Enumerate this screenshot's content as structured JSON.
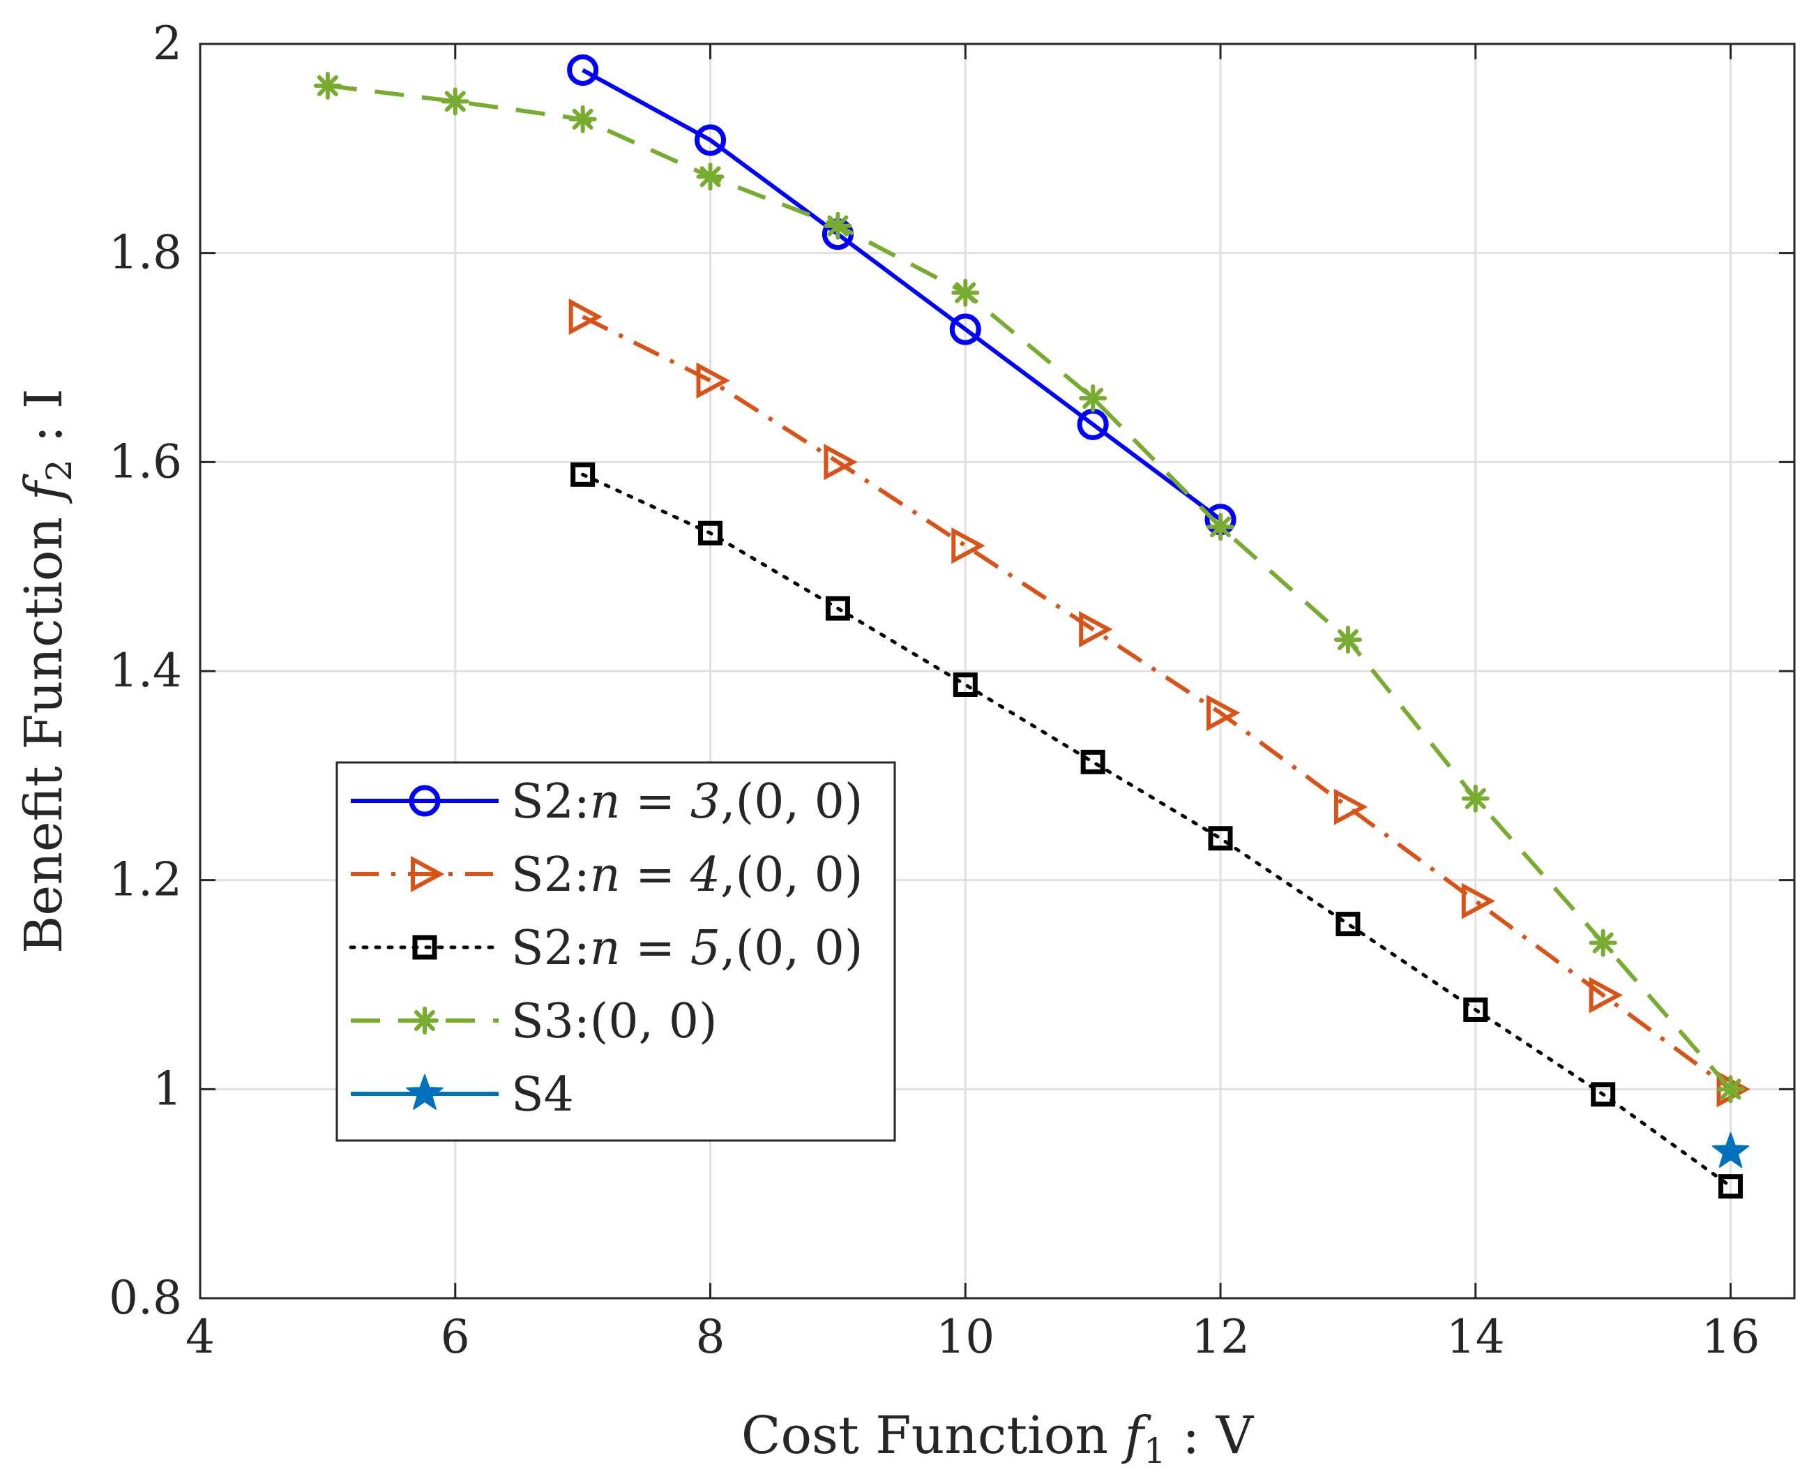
{
  "chart_data": {
    "type": "line",
    "xlabel": "Cost Function f1 : V",
    "xlabel_parts": {
      "prefix": "Cost Function ",
      "var": "f",
      "sub": "1",
      "suffix": " : V"
    },
    "ylabel": "Benefit Function f2 : I",
    "ylabel_parts": {
      "prefix": "Benefit Function ",
      "var": "f",
      "sub": "2",
      "suffix": " : I"
    },
    "xlim": [
      4,
      16.5
    ],
    "ylim": [
      0.8,
      2.0
    ],
    "xticks": [
      4,
      6,
      8,
      10,
      12,
      14,
      16
    ],
    "xtick_labels": [
      "4",
      "6",
      "8",
      "10",
      "12",
      "14",
      "16"
    ],
    "yticks": [
      0.8,
      1.0,
      1.2,
      1.4,
      1.6,
      1.8,
      2.0
    ],
    "ytick_labels": [
      "0.8",
      "1",
      "1.2",
      "1.4",
      "1.6",
      "1.8",
      "2"
    ],
    "grid": true,
    "legend_position": "lower-left",
    "series": [
      {
        "name": "S2:n = 3,(0, 0)",
        "label_prefix": "S2:",
        "label_math": "n = 3",
        "label_suffix": ",(0, 0)",
        "color": "#0000ff",
        "line": "solid",
        "marker": "circle",
        "x": [
          7,
          8,
          9,
          10,
          11,
          12
        ],
        "y": [
          1.975,
          1.908,
          1.818,
          1.727,
          1.636,
          1.545
        ]
      },
      {
        "name": "S2:n = 4,(0, 0)",
        "label_prefix": "S2:",
        "label_math": "n = 4",
        "label_suffix": ",(0, 0)",
        "color": "#d95319",
        "line": "dashdot",
        "marker": "triangle-right",
        "x": [
          7,
          8,
          9,
          10,
          11,
          12,
          13,
          14,
          15,
          16
        ],
        "y": [
          1.739,
          1.678,
          1.6,
          1.52,
          1.44,
          1.36,
          1.27,
          1.18,
          1.09,
          1.0
        ]
      },
      {
        "name": "S2:n = 5,(0, 0)",
        "label_prefix": "S2:",
        "label_math": "n = 5",
        "label_suffix": ",(0, 0)",
        "color": "#000000",
        "line": "dotted",
        "marker": "square",
        "x": [
          7,
          8,
          9,
          10,
          11,
          12,
          13,
          14,
          15,
          16
        ],
        "y": [
          1.588,
          1.532,
          1.46,
          1.387,
          1.313,
          1.24,
          1.158,
          1.076,
          0.995,
          0.907
        ]
      },
      {
        "name": "S3:(0, 0)",
        "label_prefix": "S3:",
        "label_math": "",
        "label_suffix": "(0, 0)",
        "color": "#77ac30",
        "line": "dashed",
        "marker": "asterisk",
        "x": [
          5,
          6,
          7,
          8,
          9,
          10,
          11,
          12,
          13,
          14,
          15,
          16
        ],
        "y": [
          1.96,
          1.945,
          1.928,
          1.873,
          1.826,
          1.762,
          1.661,
          1.538,
          1.43,
          1.278,
          1.14,
          1.0
        ]
      },
      {
        "name": "S4",
        "label_prefix": "S4",
        "label_math": "",
        "label_suffix": "",
        "color": "#0072bd",
        "line": "solid",
        "marker": "star",
        "x": [
          16
        ],
        "y": [
          0.94
        ]
      }
    ]
  }
}
